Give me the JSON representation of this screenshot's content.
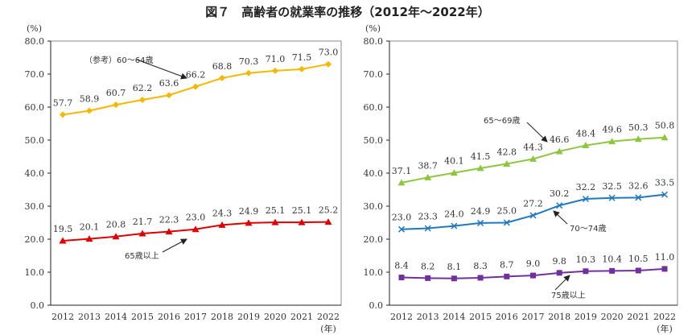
{
  "title": "図７　高齢者の就業率の推移（2012年～2022年）",
  "chart_data": [
    {
      "type": "line",
      "ylabel": "(%)",
      "xlabel": "(年)",
      "ylim": [
        0,
        80
      ],
      "yticks": [
        "0.0",
        "10.0",
        "20.0",
        "30.0",
        "40.0",
        "50.0",
        "60.0",
        "70.0",
        "80.0"
      ],
      "categories": [
        "2012",
        "2013",
        "2014",
        "2015",
        "2016",
        "2017",
        "2018",
        "2019",
        "2020",
        "2021",
        "2022"
      ],
      "series": [
        {
          "name": "（参考）60～64歳",
          "color": "#F5B800",
          "marker": "diamond",
          "values": [
            57.7,
            58.9,
            60.7,
            62.2,
            63.6,
            66.2,
            68.8,
            70.3,
            71.0,
            71.5,
            73.0
          ]
        },
        {
          "name": "65歳以上",
          "color": "#E00000",
          "marker": "triangle",
          "values": [
            19.5,
            20.1,
            20.8,
            21.7,
            22.3,
            23.0,
            24.3,
            24.9,
            25.1,
            25.1,
            25.2
          ]
        }
      ]
    },
    {
      "type": "line",
      "ylabel": "(%)",
      "xlabel": "(年)",
      "ylim": [
        0,
        80
      ],
      "yticks": [
        "0.0",
        "10.0",
        "20.0",
        "30.0",
        "40.0",
        "50.0",
        "60.0",
        "70.0",
        "80.0"
      ],
      "categories": [
        "2012",
        "2013",
        "2014",
        "2015",
        "2016",
        "2017",
        "2018",
        "2019",
        "2020",
        "2021",
        "2022"
      ],
      "series": [
        {
          "name": "65～69歳",
          "color": "#8DC63F",
          "marker": "triangle",
          "values": [
            37.1,
            38.7,
            40.1,
            41.5,
            42.8,
            44.3,
            46.6,
            48.4,
            49.6,
            50.3,
            50.8
          ]
        },
        {
          "name": "70～74歳",
          "color": "#1F78C1",
          "marker": "x",
          "values": [
            23.0,
            23.3,
            24.0,
            24.9,
            25.0,
            27.2,
            30.2,
            32.2,
            32.5,
            32.6,
            33.5
          ]
        },
        {
          "name": "75歳以上",
          "color": "#7030A0",
          "marker": "square",
          "values": [
            8.4,
            8.2,
            8.1,
            8.3,
            8.7,
            9.0,
            9.8,
            10.3,
            10.4,
            10.5,
            11.0
          ]
        }
      ]
    }
  ]
}
